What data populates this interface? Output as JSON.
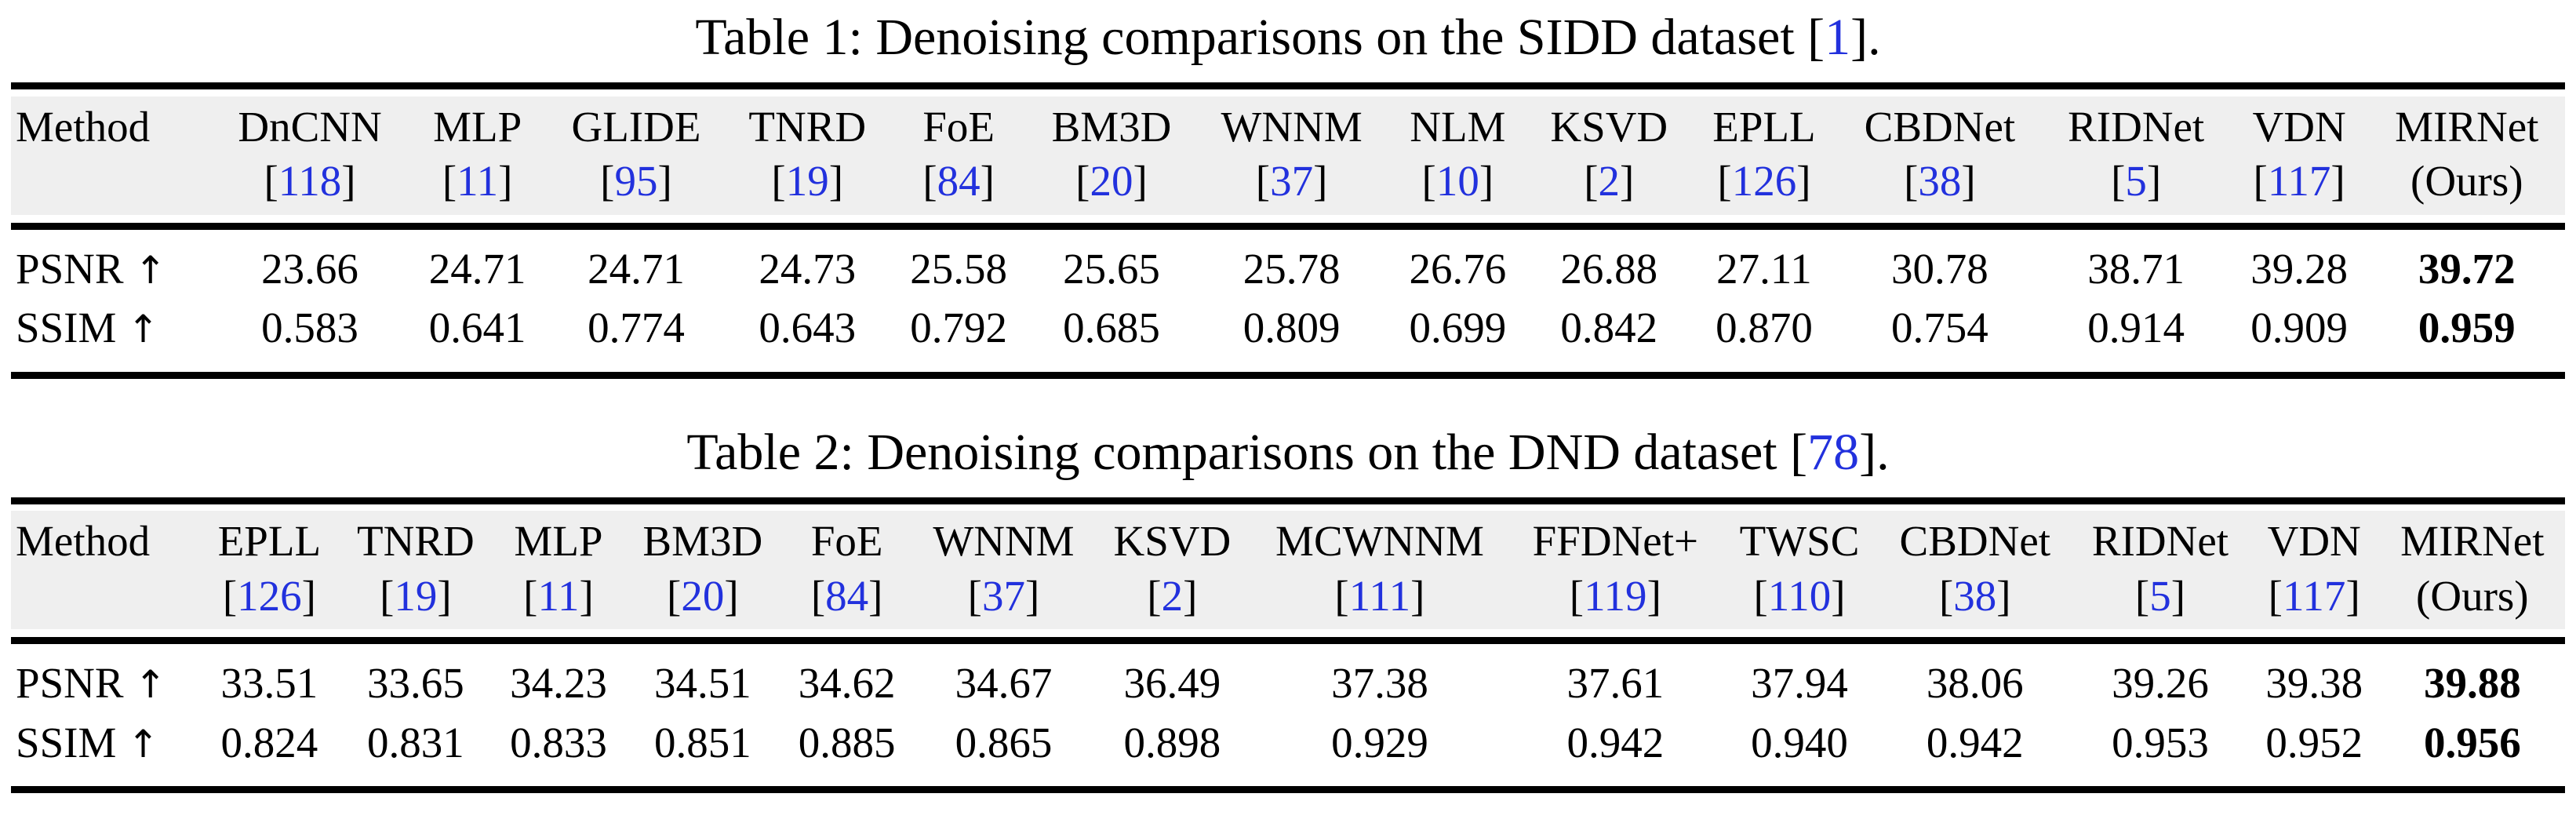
{
  "colors": {
    "citation_blue": "#2231dd",
    "header_band": "#efefef",
    "rule_black": "#000000",
    "text_black": "#000000"
  },
  "ui": {
    "cite_open": "[",
    "cite_close": "]"
  },
  "tables": [
    {
      "caption": {
        "prefix": "Table 1: Denoising comparisons on the SIDD dataset ",
        "cite_open": "[",
        "cite_num": "1",
        "cite_close": "]",
        "suffix": "."
      },
      "header_label": "Method",
      "columns": [
        {
          "name": "DnCNN",
          "cite": "118"
        },
        {
          "name": "MLP",
          "cite": "11"
        },
        {
          "name": "GLIDE",
          "cite": "95"
        },
        {
          "name": "TNRD",
          "cite": "19"
        },
        {
          "name": "FoE",
          "cite": "84"
        },
        {
          "name": "BM3D",
          "cite": "20"
        },
        {
          "name": "WNNM",
          "cite": "37"
        },
        {
          "name": "NLM",
          "cite": "10"
        },
        {
          "name": "KSVD",
          "cite": "2"
        },
        {
          "name": "EPLL",
          "cite": "126"
        },
        {
          "name": "CBDNet",
          "cite": "38"
        },
        {
          "name": "RIDNet",
          "cite": "5"
        },
        {
          "name": "VDN",
          "cite": "117"
        },
        {
          "name": "MIRNet",
          "note": "(Ours)"
        }
      ],
      "rows": [
        {
          "label": "PSNR",
          "arrow": "↑",
          "values": [
            "23.66",
            "24.71",
            "24.71",
            "24.73",
            "25.58",
            "25.65",
            "25.78",
            "26.76",
            "26.88",
            "27.11",
            "30.78",
            "38.71",
            "39.28",
            "39.72"
          ],
          "best_index": 13
        },
        {
          "label": "SSIM",
          "arrow": "↑",
          "values": [
            "0.583",
            "0.641",
            "0.774",
            "0.643",
            "0.792",
            "0.685",
            "0.809",
            "0.699",
            "0.842",
            "0.870",
            "0.754",
            "0.914",
            "0.909",
            "0.959"
          ],
          "best_index": 13
        }
      ]
    },
    {
      "caption": {
        "prefix": "Table 2: Denoising comparisons on the DND dataset ",
        "cite_open": "[",
        "cite_num": "78",
        "cite_close": "]",
        "suffix": "."
      },
      "header_label": "Method",
      "columns": [
        {
          "name": "EPLL",
          "cite": "126"
        },
        {
          "name": "TNRD",
          "cite": "19"
        },
        {
          "name": "MLP",
          "cite": "11"
        },
        {
          "name": "BM3D",
          "cite": "20"
        },
        {
          "name": "FoE",
          "cite": "84"
        },
        {
          "name": "WNNM",
          "cite": "37"
        },
        {
          "name": "KSVD",
          "cite": "2"
        },
        {
          "name": "MCWNNM",
          "cite": "111"
        },
        {
          "name": "FFDNet+",
          "cite": "119"
        },
        {
          "name": "TWSC",
          "cite": "110"
        },
        {
          "name": "CBDNet",
          "cite": "38"
        },
        {
          "name": "RIDNet",
          "cite": "5"
        },
        {
          "name": "VDN",
          "cite": "117"
        },
        {
          "name": "MIRNet",
          "note": "(Ours)"
        }
      ],
      "rows": [
        {
          "label": "PSNR",
          "arrow": "↑",
          "values": [
            "33.51",
            "33.65",
            "34.23",
            "34.51",
            "34.62",
            "34.67",
            "36.49",
            "37.38",
            "37.61",
            "37.94",
            "38.06",
            "39.26",
            "39.38",
            "39.88"
          ],
          "best_index": 13
        },
        {
          "label": "SSIM",
          "arrow": "↑",
          "values": [
            "0.824",
            "0.831",
            "0.833",
            "0.851",
            "0.885",
            "0.865",
            "0.898",
            "0.929",
            "0.942",
            "0.940",
            "0.942",
            "0.953",
            "0.952",
            "0.956"
          ],
          "best_index": 13
        }
      ]
    }
  ]
}
